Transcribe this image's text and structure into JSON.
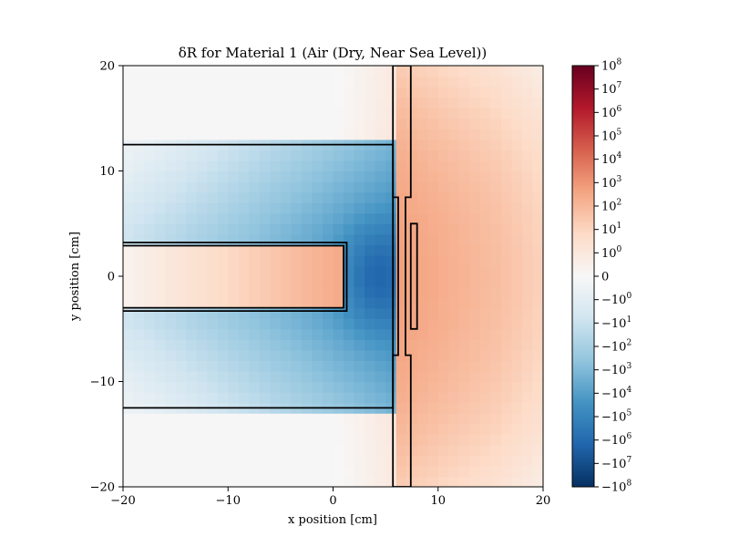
{
  "chart_data": {
    "type": "heatmap",
    "title": "δR for Material 1 (Air (Dry, Near Sea Level))",
    "xlabel": "x position [cm]",
    "ylabel": "y position [cm]",
    "xlim": [
      -20,
      20
    ],
    "ylim": [
      -20,
      20
    ],
    "x_ticks": [
      {
        "value": -20,
        "label": "−20"
      },
      {
        "value": -10,
        "label": "−10"
      },
      {
        "value": 0,
        "label": "0"
      },
      {
        "value": 10,
        "label": "10"
      },
      {
        "value": 20,
        "label": "20"
      }
    ],
    "y_ticks": [
      {
        "value": -20,
        "label": "−20"
      },
      {
        "value": -10,
        "label": "−10"
      },
      {
        "value": 0,
        "label": "0"
      },
      {
        "value": 10,
        "label": "10"
      },
      {
        "value": 20,
        "label": "20"
      }
    ],
    "colormap": "RdBu_r",
    "color_scale": "symlog",
    "colorbar_limits": [
      -100000000,
      100000000
    ],
    "colorbar_ticks": [
      {
        "base": "10",
        "exp": "8",
        "sign": ""
      },
      {
        "base": "10",
        "exp": "7",
        "sign": ""
      },
      {
        "base": "10",
        "exp": "6",
        "sign": ""
      },
      {
        "base": "10",
        "exp": "5",
        "sign": ""
      },
      {
        "base": "10",
        "exp": "4",
        "sign": ""
      },
      {
        "base": "10",
        "exp": "3",
        "sign": ""
      },
      {
        "base": "10",
        "exp": "2",
        "sign": ""
      },
      {
        "base": "10",
        "exp": "1",
        "sign": ""
      },
      {
        "base": "10",
        "exp": "0",
        "sign": ""
      },
      {
        "base": "0",
        "exp": "",
        "sign": ""
      },
      {
        "base": "10",
        "exp": "0",
        "sign": "−"
      },
      {
        "base": "10",
        "exp": "1",
        "sign": "−"
      },
      {
        "base": "10",
        "exp": "2",
        "sign": "−"
      },
      {
        "base": "10",
        "exp": "3",
        "sign": "−"
      },
      {
        "base": "10",
        "exp": "4",
        "sign": "−"
      },
      {
        "base": "10",
        "exp": "5",
        "sign": "−"
      },
      {
        "base": "10",
        "exp": "6",
        "sign": "−"
      },
      {
        "base": "10",
        "exp": "7",
        "sign": "−"
      },
      {
        "base": "10",
        "exp": "8",
        "sign": "−"
      }
    ],
    "grid": false,
    "geometry_outlines": [
      {
        "name": "upper-slab",
        "points": [
          [
            -20,
            12.5
          ],
          [
            5.7,
            12.5
          ],
          [
            5.7,
            -12.5
          ],
          [
            -20,
            -12.5
          ]
        ],
        "open": true
      },
      {
        "name": "central-rod-outer",
        "points": [
          [
            -20,
            3.2
          ],
          [
            1.3,
            3.2
          ],
          [
            1.3,
            -3.3
          ],
          [
            -20,
            -3.3
          ]
        ],
        "open": true
      },
      {
        "name": "central-rod-inner",
        "points": [
          [
            -20,
            2.9
          ],
          [
            1.0,
            2.9
          ],
          [
            1.0,
            -3.0
          ],
          [
            -20,
            -3.0
          ]
        ],
        "open": true
      },
      {
        "name": "plate",
        "points": [
          [
            5.7,
            20
          ],
          [
            7.4,
            20
          ],
          [
            7.4,
            7.5
          ],
          [
            6.9,
            7.5
          ],
          [
            6.9,
            -7.5
          ],
          [
            7.4,
            -7.5
          ],
          [
            7.4,
            -20
          ],
          [
            5.7,
            -20
          ],
          [
            5.7,
            -7.5
          ],
          [
            6.2,
            -7.5
          ],
          [
            6.2,
            7.5
          ],
          [
            5.7,
            7.5
          ]
        ],
        "open": false
      },
      {
        "name": "small-target",
        "points": [
          [
            7.4,
            5.0
          ],
          [
            8.0,
            5.0
          ],
          [
            8.0,
            -5.0
          ],
          [
            7.4,
            -5.0
          ]
        ],
        "open": false
      }
    ],
    "field_description_ranges": {
      "grid_cells": 40,
      "cell_size_cm": 1
    }
  }
}
